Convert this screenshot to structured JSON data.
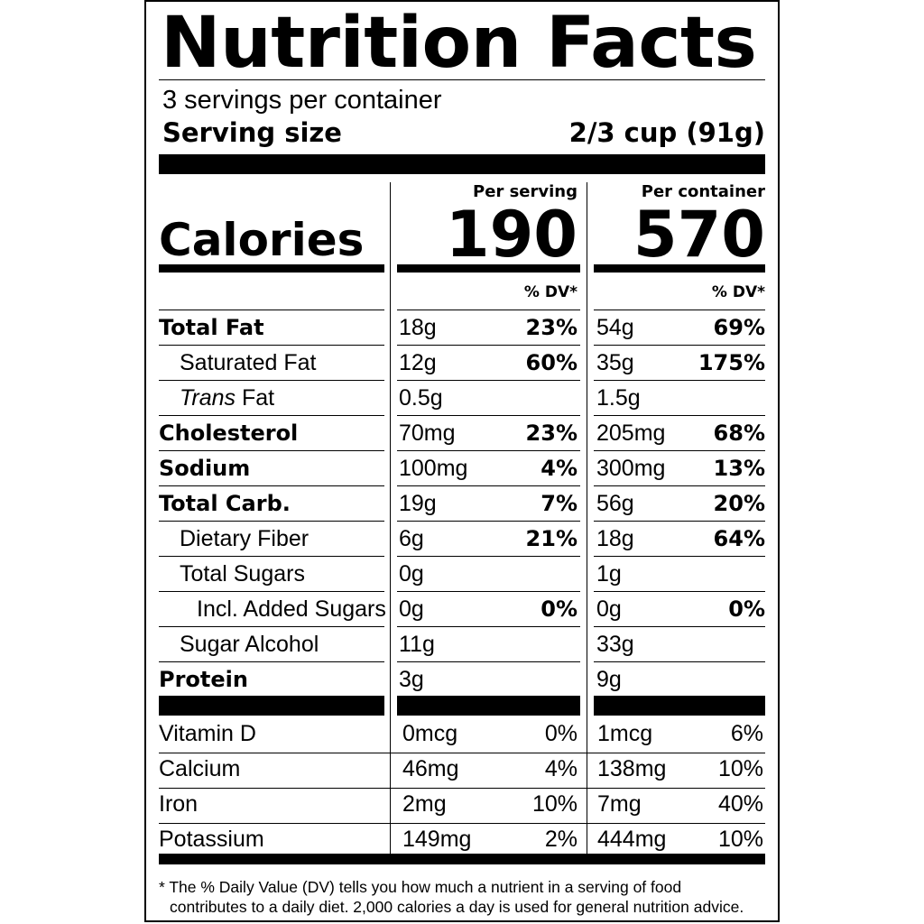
{
  "title": "Nutrition Facts",
  "servings_per_container": "3 servings per container",
  "serving_size": {
    "label": "Serving size",
    "value": "2/3 cup (91g)"
  },
  "columns": {
    "per_serving": "Per serving",
    "per_container": "Per container"
  },
  "calories": {
    "label": "Calories",
    "per_serving": "190",
    "per_container": "570"
  },
  "dv_header": "% DV*",
  "nutrients": [
    {
      "name": "Total Fat",
      "style": "bold",
      "indent": 0,
      "serv_amt": "18g",
      "serv_dv": "23%",
      "cont_amt": "54g",
      "cont_dv": "69%"
    },
    {
      "name": "Saturated Fat",
      "style": "normal",
      "indent": 1,
      "serv_amt": "12g",
      "serv_dv": "60%",
      "cont_amt": "35g",
      "cont_dv": "175%"
    },
    {
      "name_italic": "Trans",
      "name": " Fat",
      "style": "trans",
      "indent": 1,
      "serv_amt": "0.5g",
      "serv_dv": "",
      "cont_amt": "1.5g",
      "cont_dv": ""
    },
    {
      "name": "Cholesterol",
      "style": "bold",
      "indent": 0,
      "serv_amt": "70mg",
      "serv_dv": "23%",
      "cont_amt": "205mg",
      "cont_dv": "68%"
    },
    {
      "name": "Sodium",
      "style": "bold",
      "indent": 0,
      "serv_amt": "100mg",
      "serv_dv": "4%",
      "cont_amt": "300mg",
      "cont_dv": "13%"
    },
    {
      "name": "Total Carb.",
      "style": "bold",
      "indent": 0,
      "serv_amt": "19g",
      "serv_dv": "7%",
      "cont_amt": "56g",
      "cont_dv": "20%"
    },
    {
      "name": "Dietary Fiber",
      "style": "normal",
      "indent": 1,
      "serv_amt": "6g",
      "serv_dv": "21%",
      "cont_amt": "18g",
      "cont_dv": "64%"
    },
    {
      "name": "Total Sugars",
      "style": "normal",
      "indent": 1,
      "serv_amt": "0g",
      "serv_dv": "",
      "cont_amt": "1g",
      "cont_dv": ""
    },
    {
      "name": "Incl. Added Sugars",
      "style": "normal",
      "indent": 2,
      "serv_amt": "0g",
      "serv_dv": "0%",
      "cont_amt": "0g",
      "cont_dv": "0%"
    },
    {
      "name": "Sugar Alcohol",
      "style": "normal",
      "indent": 1,
      "serv_amt": "11g",
      "serv_dv": "",
      "cont_amt": "33g",
      "cont_dv": ""
    },
    {
      "name": "Protein",
      "style": "bold",
      "indent": 0,
      "serv_amt": "3g",
      "serv_dv": "",
      "cont_amt": "9g",
      "cont_dv": ""
    }
  ],
  "vitamins": [
    {
      "name": "Vitamin D",
      "serv_amt": "0mcg",
      "serv_dv": "0%",
      "cont_amt": "1mcg",
      "cont_dv": "6%"
    },
    {
      "name": "Calcium",
      "serv_amt": "46mg",
      "serv_dv": "4%",
      "cont_amt": "138mg",
      "cont_dv": "10%"
    },
    {
      "name": "Iron",
      "serv_amt": "2mg",
      "serv_dv": "10%",
      "cont_amt": "7mg",
      "cont_dv": "40%"
    },
    {
      "name": "Potassium",
      "serv_amt": "149mg",
      "serv_dv": "2%",
      "cont_amt": "444mg",
      "cont_dv": "10%"
    }
  ],
  "footnote": {
    "line1": "* The % Daily Value (DV) tells you how much a nutrient in a serving of food",
    "line2": "contributes to a daily diet. 2,000 calories a day is used for general nutrition advice."
  }
}
